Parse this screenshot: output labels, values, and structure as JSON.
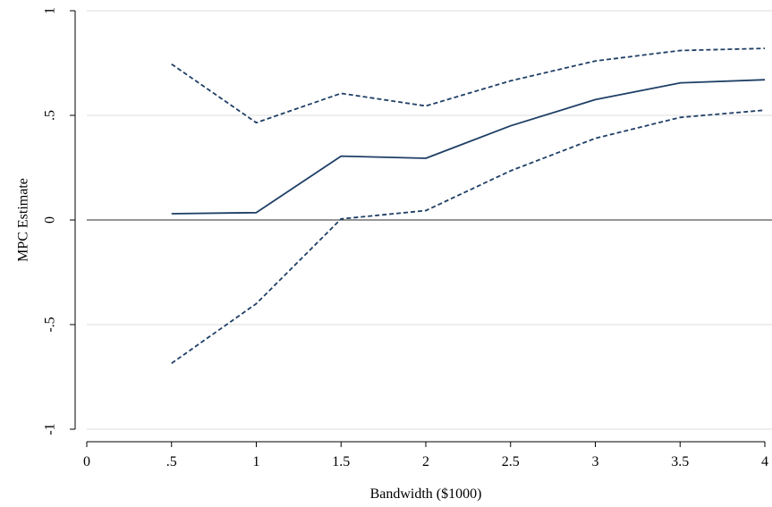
{
  "chart_data": {
    "type": "line",
    "xlabel": "Bandwidth ($1000)",
    "ylabel": "MPC Estimate",
    "xlim": [
      0,
      4
    ],
    "ylim": [
      -1,
      1
    ],
    "x_ticks": [
      {
        "value": 0,
        "label": "0"
      },
      {
        "value": 0.5,
        "label": ".5"
      },
      {
        "value": 1,
        "label": "1"
      },
      {
        "value": 1.5,
        "label": "1.5"
      },
      {
        "value": 2,
        "label": "2"
      },
      {
        "value": 2.5,
        "label": "2.5"
      },
      {
        "value": 3,
        "label": "3"
      },
      {
        "value": 3.5,
        "label": "3.5"
      },
      {
        "value": 4,
        "label": "4"
      }
    ],
    "y_ticks": [
      {
        "value": -1,
        "label": "-1"
      },
      {
        "value": -0.5,
        "label": "-.5"
      },
      {
        "value": 0,
        "label": "0"
      },
      {
        "value": 0.5,
        "label": ".5"
      },
      {
        "value": 1,
        "label": "1"
      }
    ],
    "grid": true,
    "reference_line": 0,
    "x": [
      0.5,
      1,
      1.5,
      2,
      2.5,
      3,
      3.5,
      4
    ],
    "series": [
      {
        "style": "solid",
        "values": [
          0.03,
          0.035,
          0.305,
          0.295,
          0.45,
          0.575,
          0.655,
          0.67
        ]
      },
      {
        "style": "dashed",
        "values": [
          0.745,
          0.465,
          0.605,
          0.545,
          0.665,
          0.76,
          0.81,
          0.82
        ]
      },
      {
        "style": "dashed",
        "values": [
          -0.685,
          -0.4,
          0.005,
          0.045,
          0.235,
          0.39,
          0.49,
          0.525
        ]
      }
    ],
    "line_color": "#1f3f66"
  }
}
